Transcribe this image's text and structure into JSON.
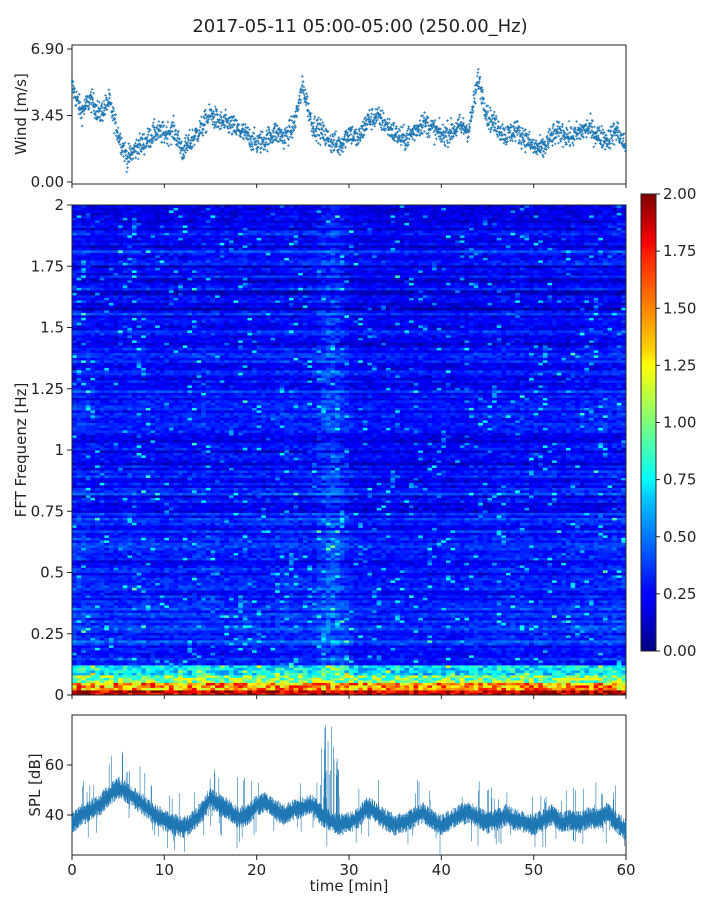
{
  "title": "2017-05-11 05:00-05:00 (250.00_Hz)",
  "chart_data": [
    {
      "type": "scatter",
      "panel": "wind",
      "ylabel": "Wind [m/s]",
      "xlabel": "",
      "ylim": [
        0,
        6.9
      ],
      "yticks": [
        0.0,
        3.45,
        6.9
      ],
      "ytick_labels": [
        "0.00",
        "3.45",
        "6.90"
      ],
      "xlim": [
        0,
        60
      ],
      "marker": "+",
      "color": "#1f77b4",
      "series": [
        {
          "name": "wind",
          "x": [
            0,
            1,
            2,
            3,
            4,
            5,
            6,
            7,
            8,
            9,
            10,
            11,
            12,
            13,
            14,
            15,
            16,
            17,
            18,
            19,
            20,
            21,
            22,
            23,
            24,
            25,
            26,
            27,
            28,
            29,
            30,
            31,
            32,
            33,
            34,
            35,
            36,
            37,
            38,
            39,
            40,
            41,
            42,
            43,
            44,
            45,
            46,
            47,
            48,
            49,
            50,
            51,
            52,
            53,
            54,
            55,
            56,
            57,
            58,
            59,
            60
          ],
          "values": [
            5.0,
            3.6,
            4.3,
            3.5,
            4.2,
            2.5,
            1.2,
            1.8,
            2.1,
            2.6,
            2.5,
            2.7,
            1.6,
            2.2,
            2.8,
            3.5,
            3.1,
            3.0,
            2.7,
            2.4,
            2.0,
            2.2,
            2.6,
            2.3,
            2.9,
            5.0,
            3.0,
            2.6,
            2.1,
            1.9,
            2.6,
            2.2,
            3.2,
            3.4,
            3.0,
            2.5,
            2.2,
            2.6,
            3.1,
            2.8,
            2.4,
            2.6,
            2.9,
            2.7,
            5.4,
            3.4,
            2.9,
            2.4,
            2.7,
            2.3,
            1.8,
            1.7,
            2.4,
            2.6,
            2.3,
            2.6,
            2.8,
            2.4,
            2.2,
            2.7,
            1.8
          ]
        }
      ]
    },
    {
      "type": "heatmap",
      "panel": "spectrogram",
      "ylabel": "FFT Frequenz [Hz]",
      "xlabel": "",
      "xlim": [
        0,
        60
      ],
      "ylim": [
        0,
        2
      ],
      "yticks": [
        0,
        0.25,
        0.5,
        0.75,
        1,
        1.25,
        1.5,
        1.75,
        2
      ],
      "ytick_labels": [
        "0",
        "0.25",
        "0.5",
        "0.75",
        "1",
        "1.25",
        "1.5",
        "1.75",
        "2"
      ],
      "colormap": "jet",
      "colorbar": {
        "vmin": 0,
        "vmax": 2,
        "ticks": [
          0,
          0.25,
          0.5,
          0.75,
          1,
          1.25,
          1.5,
          1.75,
          2
        ],
        "tick_labels": [
          "0.00",
          "0.25",
          "0.50",
          "0.75",
          "1.00",
          "1.25",
          "1.50",
          "1.75",
          "2.00"
        ]
      },
      "time_activity": [
        1.15,
        1.1,
        1.05,
        1.05,
        1.0,
        1.05,
        1.1,
        1.05,
        1.05,
        1.0,
        1.0,
        1.05,
        1.0,
        1.05,
        1.1,
        1.05,
        1.0,
        1.0,
        1.05,
        1.05,
        1.05,
        1.0,
        1.1,
        1.1,
        1.05,
        1.05,
        1.1,
        1.4,
        1.45,
        1.15,
        0.95,
        0.95,
        0.95,
        0.95,
        0.95,
        0.95,
        0.95,
        0.95,
        0.95,
        0.95,
        0.95,
        0.95,
        0.95,
        1.0,
        1.0,
        1.0,
        1.05,
        1.05,
        1.05,
        1.0,
        1.0,
        1.0,
        1.0,
        1.0,
        1.05,
        1.05,
        1.05,
        1.05,
        1.1,
        1.1
      ]
    },
    {
      "type": "line",
      "panel": "spl",
      "ylabel": "SPL [dB]",
      "xlabel": "time [min]",
      "xlim": [
        0,
        60
      ],
      "ylim": [
        24,
        80
      ],
      "yticks": [
        40,
        60
      ],
      "ytick_labels": [
        "40",
        "60"
      ],
      "xticks": [
        0,
        10,
        20,
        30,
        40,
        50,
        60
      ],
      "xtick_labels": [
        "0",
        "10",
        "20",
        "30",
        "40",
        "50",
        "60"
      ],
      "color": "#1f77b4",
      "series": [
        {
          "name": "SPL",
          "x": [
            0,
            1,
            2,
            3,
            4,
            5,
            6,
            7,
            8,
            9,
            10,
            11,
            12,
            13,
            14,
            15,
            16,
            17,
            18,
            19,
            20,
            21,
            22,
            23,
            24,
            25,
            26,
            27,
            28,
            29,
            30,
            31,
            32,
            33,
            34,
            35,
            36,
            37,
            38,
            39,
            40,
            41,
            42,
            43,
            44,
            45,
            46,
            47,
            48,
            49,
            50,
            51,
            52,
            53,
            54,
            55,
            56,
            57,
            58,
            59,
            60
          ],
          "values": [
            37,
            40,
            42,
            44,
            48,
            51,
            49,
            46,
            43,
            40,
            38,
            36,
            35,
            37,
            41,
            47,
            44,
            42,
            39,
            40,
            44,
            45,
            42,
            40,
            42,
            43,
            44,
            40,
            38,
            36,
            37,
            39,
            43,
            41,
            38,
            36,
            37,
            39,
            41,
            38,
            36,
            38,
            40,
            41,
            39,
            37,
            38,
            40,
            38,
            37,
            36,
            38,
            40,
            37,
            38,
            37,
            39,
            38,
            41,
            37,
            34
          ]
        }
      ],
      "spike_band": {
        "x": [
          27,
          29
        ],
        "max": 77
      }
    }
  ]
}
